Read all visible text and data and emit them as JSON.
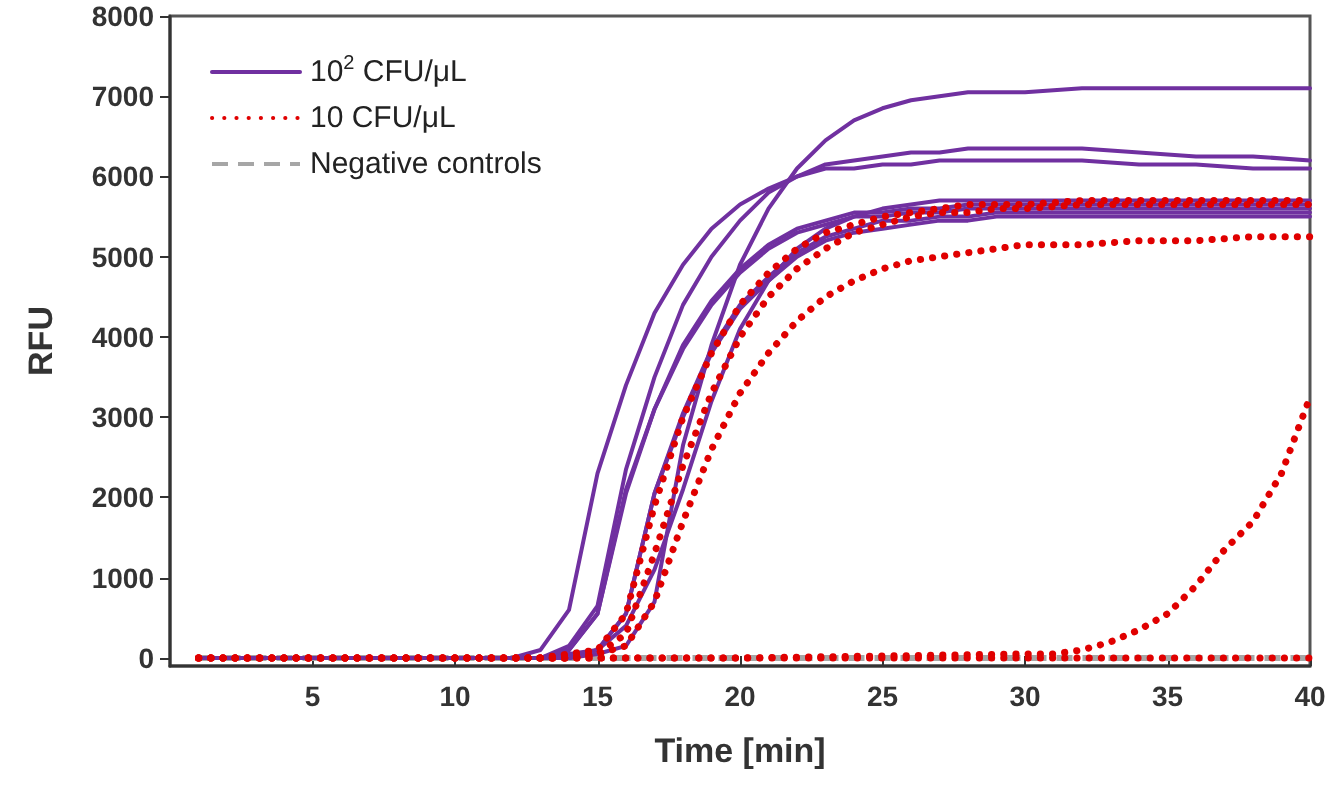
{
  "chart_data": {
    "type": "line",
    "xlabel": "Time [min]",
    "ylabel": "RFU",
    "x": [
      1,
      5,
      10,
      12,
      13,
      14,
      15,
      16,
      17,
      18,
      19,
      20,
      21,
      22,
      23,
      24,
      25,
      26,
      27,
      28,
      29,
      30,
      32,
      34,
      36,
      38,
      40
    ],
    "xlim": [
      0,
      40
    ],
    "xticks": [
      5,
      10,
      15,
      20,
      25,
      30,
      35,
      40
    ],
    "ylim": [
      -100,
      8000
    ],
    "yticks": [
      0,
      1000,
      2000,
      3000,
      4000,
      5000,
      6000,
      7000,
      8000
    ],
    "grid": false,
    "legend": "top left",
    "marker": "none",
    "series": [
      {
        "name": "10$^{2}$ CFU/μL",
        "color": "#7030a0",
        "line_style": "solid",
        "values": [
          0,
          0,
          0,
          0,
          100,
          600,
          2300,
          3400,
          4300,
          4900,
          5350,
          5650,
          5850,
          6000,
          6100,
          6100,
          6150,
          6150,
          6200,
          6200,
          6200,
          6200,
          6200,
          6150,
          6150,
          6100,
          6100
        ]
      },
      {
        "color": "#7030a0",
        "line_style": "solid",
        "values": [
          0,
          0,
          0,
          0,
          0,
          150,
          650,
          2350,
          3500,
          4400,
          5000,
          5450,
          5800,
          6000,
          6150,
          6200,
          6250,
          6300,
          6300,
          6350,
          6350,
          6350,
          6350,
          6300,
          6250,
          6250,
          6200
        ]
      },
      {
        "color": "#7030a0",
        "line_style": "solid",
        "values": [
          0,
          0,
          0,
          0,
          0,
          100,
          550,
          2100,
          3100,
          3900,
          4450,
          4850,
          5150,
          5350,
          5450,
          5550,
          5550,
          5600,
          5600,
          5650,
          5650,
          5650,
          5650,
          5650,
          5650,
          5650,
          5650
        ]
      },
      {
        "color": "#7030a0",
        "line_style": "solid",
        "values": [
          0,
          0,
          0,
          0,
          0,
          100,
          550,
          2050,
          3100,
          3850,
          4400,
          4800,
          5100,
          5300,
          5400,
          5500,
          5500,
          5550,
          5550,
          5600,
          5600,
          5600,
          5600,
          5600,
          5600,
          5600,
          5600
        ]
      },
      {
        "color": "#7030a0",
        "line_style": "solid",
        "values": [
          0,
          0,
          0,
          0,
          0,
          0,
          100,
          550,
          2050,
          3050,
          3850,
          4400,
          4750,
          5050,
          5250,
          5350,
          5450,
          5450,
          5500,
          5500,
          5550,
          5550,
          5550,
          5550,
          5550,
          5550,
          5550
        ]
      },
      {
        "color": "#7030a0",
        "line_style": "solid",
        "values": [
          0,
          0,
          0,
          0,
          0,
          0,
          100,
          550,
          2050,
          3000,
          3800,
          4350,
          4700,
          5000,
          5200,
          5300,
          5350,
          5400,
          5450,
          5450,
          5500,
          5500,
          5500,
          5500,
          5500,
          5500,
          5500
        ]
      },
      {
        "color": "#7030a0",
        "line_style": "solid",
        "values": [
          0,
          0,
          0,
          0,
          0,
          50,
          100,
          400,
          1100,
          2100,
          3200,
          4100,
          4700,
          5100,
          5350,
          5500,
          5600,
          5650,
          5700,
          5700,
          5700,
          5700,
          5700,
          5700,
          5700,
          5700,
          5700
        ]
      },
      {
        "color": "#7030a0",
        "line_style": "solid",
        "values": [
          0,
          0,
          0,
          0,
          0,
          0,
          50,
          150,
          700,
          2650,
          3900,
          4900,
          5600,
          6100,
          6450,
          6700,
          6850,
          6950,
          7000,
          7050,
          7050,
          7050,
          7100,
          7100,
          7100,
          7100,
          7100
        ]
      },
      {
        "name": "10 CFU/μL",
        "color": "#e00000",
        "line_style": "dotted",
        "values": [
          0,
          0,
          0,
          0,
          0,
          50,
          100,
          550,
          1900,
          3000,
          3800,
          4400,
          4800,
          5100,
          5300,
          5400,
          5500,
          5550,
          5600,
          5650,
          5650,
          5650,
          5700,
          5700,
          5700,
          5700,
          5700
        ]
      },
      {
        "color": "#e00000",
        "line_style": "dotted",
        "values": [
          0,
          0,
          0,
          0,
          0,
          0,
          50,
          300,
          1300,
          2400,
          3300,
          4000,
          4500,
          4850,
          5100,
          5300,
          5400,
          5500,
          5550,
          5550,
          5600,
          5600,
          5650,
          5650,
          5650,
          5650,
          5650
        ]
      },
      {
        "color": "#e00000",
        "line_style": "dotted",
        "values": [
          0,
          0,
          0,
          0,
          0,
          0,
          50,
          150,
          700,
          1700,
          2600,
          3300,
          3800,
          4200,
          4500,
          4700,
          4850,
          4950,
          5000,
          5050,
          5100,
          5150,
          5150,
          5200,
          5200,
          5250,
          5250
        ]
      },
      {
        "color": "#e00000",
        "line_style": "dotted",
        "x": [
          1,
          5,
          10,
          20,
          30,
          31,
          32,
          33,
          34,
          35,
          36,
          37,
          38,
          39,
          40
        ],
        "values": [
          0,
          0,
          0,
          0,
          50,
          50,
          100,
          200,
          350,
          550,
          900,
          1350,
          1700,
          2300,
          3250
        ]
      },
      {
        "color": "#e00000",
        "line_style": "dotted",
        "values": [
          0,
          0,
          0,
          0,
          0,
          0,
          0,
          0,
          0,
          0,
          0,
          0,
          0,
          0,
          0,
          0,
          0,
          0,
          0,
          0,
          0,
          0,
          0,
          0,
          0,
          0,
          0
        ]
      },
      {
        "name": "Negative controls",
        "color": "#a6a6a6",
        "line_style": "dashed",
        "values": [
          0,
          0,
          0,
          0,
          0,
          0,
          0,
          0,
          0,
          0,
          0,
          0,
          0,
          0,
          0,
          0,
          0,
          0,
          0,
          0,
          0,
          0,
          0,
          0,
          0,
          0,
          0
        ]
      }
    ]
  }
}
